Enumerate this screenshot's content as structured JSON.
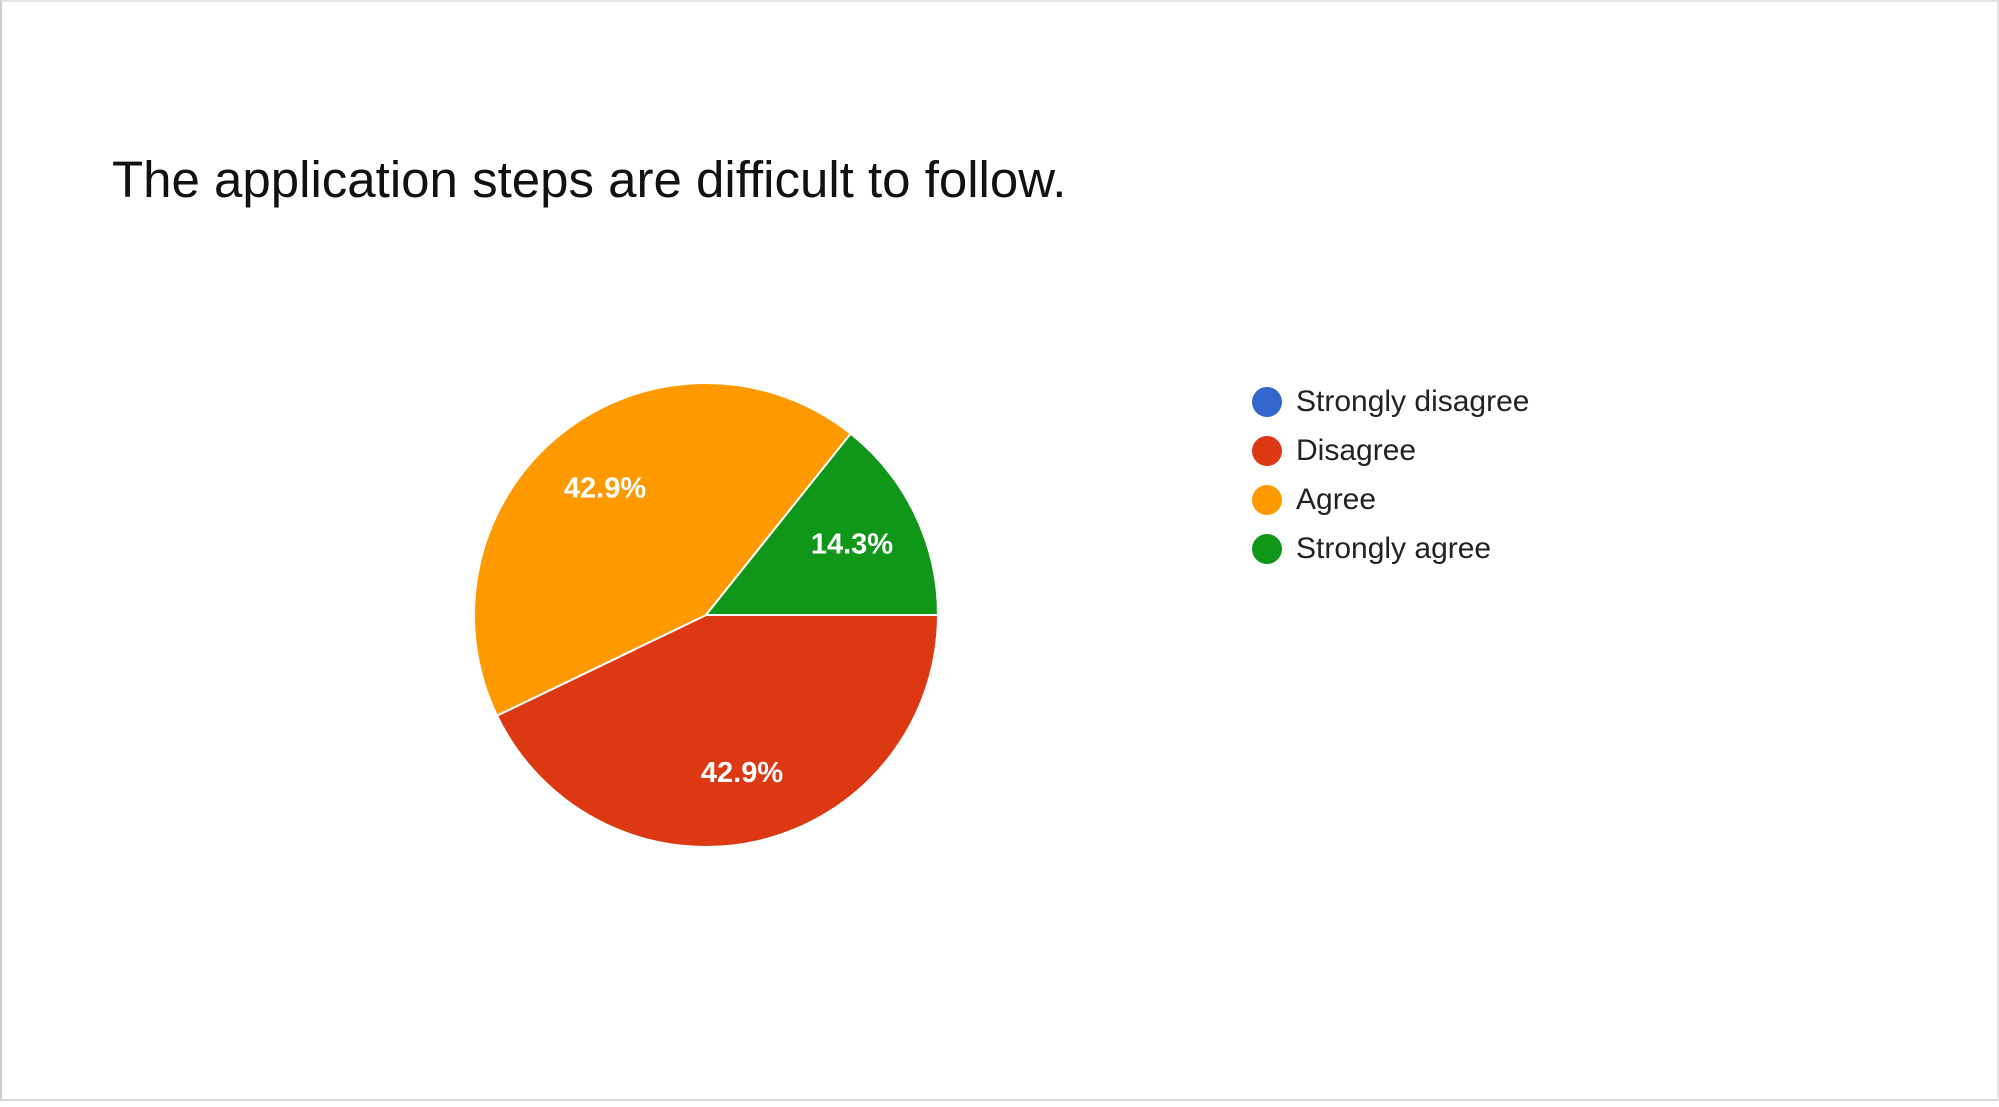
{
  "chart_data": {
    "type": "pie",
    "title": "The application steps are difficult to follow.",
    "legend_position": "right",
    "slices": [
      {
        "label": "Strongly disagree",
        "value": 0,
        "display": "",
        "color": "#3366cc"
      },
      {
        "label": "Disagree",
        "value": 42.9,
        "display": "42.9%",
        "color": "#dc3912"
      },
      {
        "label": "Agree",
        "value": 42.9,
        "display": "42.9%",
        "color": "#ff9900"
      },
      {
        "label": "Strongly agree",
        "value": 14.3,
        "display": "14.3%",
        "color": "#109618"
      }
    ]
  }
}
